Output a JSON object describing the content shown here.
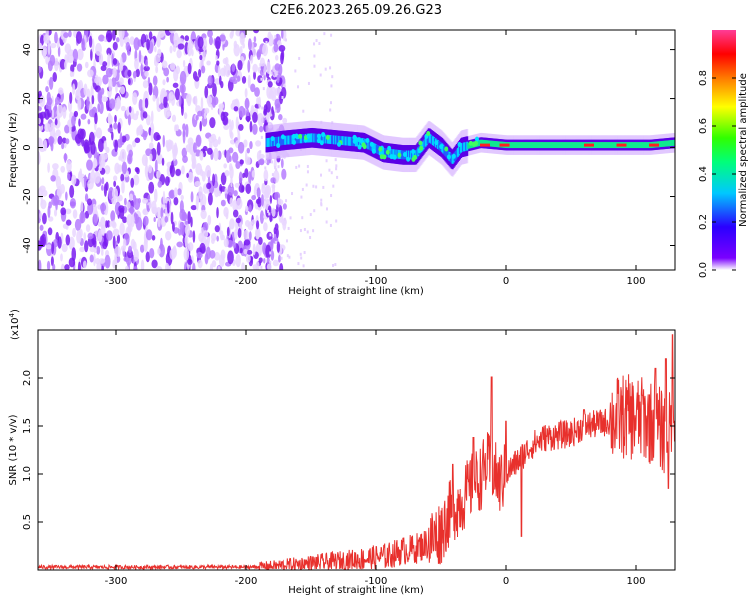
{
  "title": "C2E6.2023.265.09.26.G23",
  "colors": {
    "snr_line": "#e8302c",
    "background": "#ffffff",
    "axis": "#000000"
  },
  "chart_data": [
    {
      "type": "heatmap",
      "xlabel": "Height of straight line (km)",
      "ylabel": "Frequency (Hz)",
      "xlim": [
        -360,
        130
      ],
      "ylim": [
        -50,
        48
      ],
      "xticks": [
        -300,
        -200,
        -100,
        0,
        100
      ],
      "yticks": [
        -40,
        -20,
        0,
        20,
        40
      ],
      "colorbar": {
        "label": "Normalized spectral amplitude",
        "range": [
          0.0,
          1.0
        ],
        "ticks": [
          0.0,
          0.2,
          0.4,
          0.6,
          0.8
        ],
        "colormap": "rainbow (purple-blue-cyan-green-yellow-orange-red-magenta)"
      },
      "features": {
        "noise_region_x": [
          -360,
          -190
        ],
        "signal_track": [
          [
            -185,
            2
          ],
          [
            -170,
            3
          ],
          [
            -150,
            4
          ],
          [
            -130,
            3
          ],
          [
            -110,
            2
          ],
          [
            -95,
            -2
          ],
          [
            -80,
            -3
          ],
          [
            -70,
            -3
          ],
          [
            -60,
            4
          ],
          [
            -50,
            0
          ],
          [
            -42,
            -5
          ],
          [
            -35,
            0
          ],
          [
            -20,
            2
          ],
          [
            0,
            1
          ],
          [
            20,
            1
          ],
          [
            50,
            1
          ],
          [
            80,
            1
          ],
          [
            110,
            1
          ],
          [
            130,
            2
          ]
        ]
      }
    },
    {
      "type": "line",
      "xlabel": "Height of straight line (km)",
      "ylabel": "SNR (10 * v/v)",
      "y_exponent_label": "(x10",
      "y_exponent_power": "4",
      "xlim": [
        -360,
        130
      ],
      "ylim": [
        0,
        2.5
      ],
      "xticks": [
        -300,
        -200,
        -100,
        0,
        100
      ],
      "yticks": [
        0.5,
        1.0,
        1.5,
        2.0
      ],
      "series": [
        {
          "x": [
            -360,
            -300,
            -250,
            -200,
            -180,
            -160,
            -140,
            -120,
            -100,
            -90,
            -80,
            -70,
            -60,
            -50,
            -45,
            -40,
            -35,
            -30,
            -25,
            -20,
            -15,
            -10,
            -5,
            0,
            10,
            20,
            30,
            40,
            50,
            60,
            70,
            80,
            90,
            100,
            110,
            120,
            130
          ],
          "values": [
            0.03,
            0.03,
            0.03,
            0.03,
            0.04,
            0.06,
            0.08,
            0.1,
            0.13,
            0.15,
            0.2,
            0.22,
            0.28,
            0.4,
            0.55,
            0.65,
            0.7,
            0.8,
            0.9,
            0.95,
            1.1,
            1.05,
            0.9,
            1.0,
            1.15,
            1.3,
            1.38,
            1.4,
            1.42,
            1.5,
            1.52,
            1.55,
            1.6,
            1.58,
            1.55,
            1.45,
            1.4
          ],
          "spikes": [
            [
              -41,
              1.1
            ],
            [
              -25,
              1.38
            ],
            [
              -11,
              2.01
            ],
            [
              0,
              1.55
            ],
            [
              12,
              0.35
            ],
            [
              60,
              1.67
            ],
            [
              105,
              1.82
            ],
            [
              115,
              2.1
            ],
            [
              123,
              2.2
            ],
            [
              125,
              0.85
            ],
            [
              128,
              2.45
            ]
          ]
        }
      ]
    }
  ]
}
